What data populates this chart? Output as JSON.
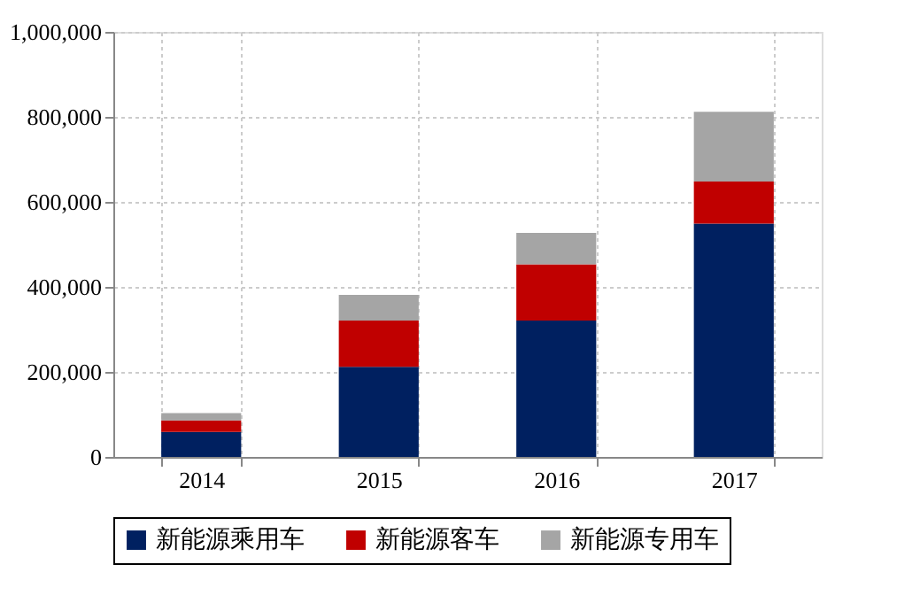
{
  "chart_data": {
    "type": "bar",
    "stacked": true,
    "categories": [
      "2014",
      "2015",
      "2016",
      "2017"
    ],
    "series": [
      {
        "name": "新能源乘用车",
        "color": "#002060",
        "values": [
          59000,
          212000,
          321000,
          549000
        ]
      },
      {
        "name": "新能源客车",
        "color": "#c00000",
        "values": [
          27000,
          109000,
          132000,
          99000
        ]
      },
      {
        "name": "新能源专用车",
        "color": "#a5a5a5",
        "values": [
          17000,
          60000,
          74000,
          164000
        ]
      }
    ],
    "ylim": [
      0,
      1000000
    ],
    "yticks": [
      0,
      {
        "value": 200000,
        "label": "200,000"
      },
      {
        "value": 400000,
        "label": "400,000"
      },
      {
        "value": 600000,
        "label": "600,000"
      },
      {
        "value": 800000,
        "label": "800,000"
      },
      {
        "value": 1000000,
        "label": "1,000,000"
      }
    ],
    "grid": true,
    "legend": "bottom"
  }
}
